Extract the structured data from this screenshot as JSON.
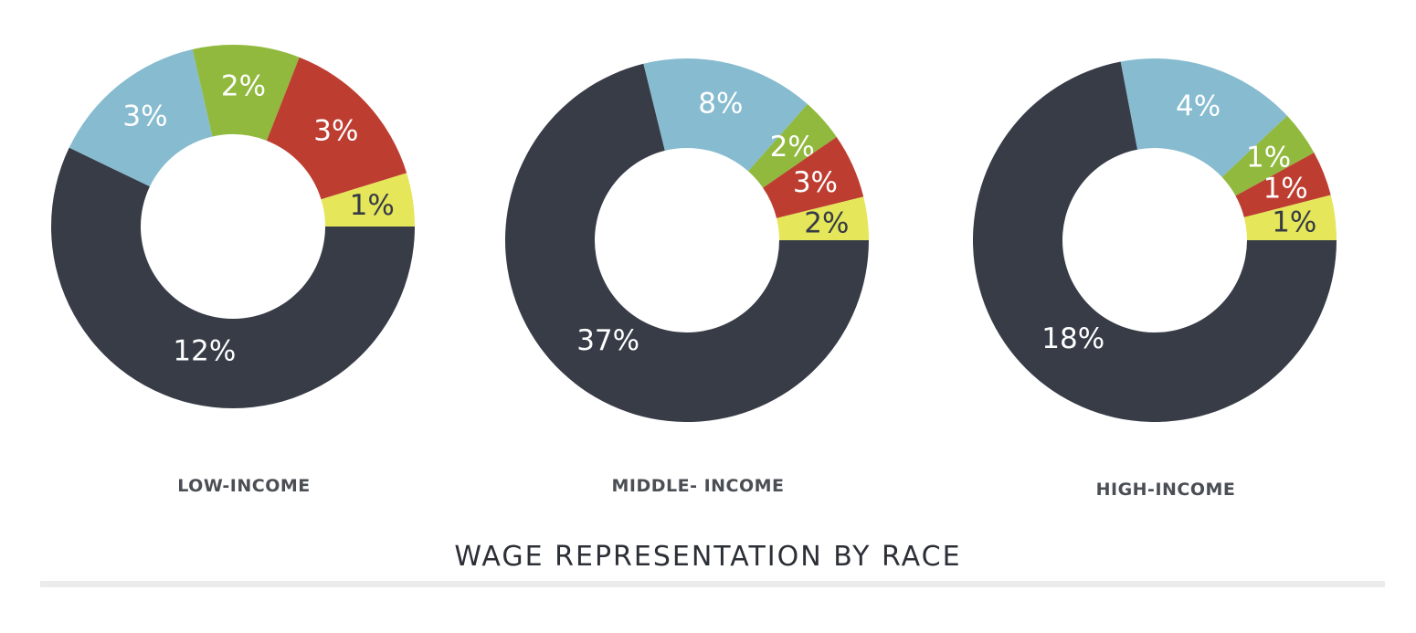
{
  "chart_data": [
    {
      "type": "pie",
      "label": "LOW-INCOME",
      "slices": [
        {
          "value": 12,
          "label": "12%",
          "color": "#373c47"
        },
        {
          "value": 3,
          "label": "3%",
          "color": "#86bbd0"
        },
        {
          "value": 2,
          "label": "2%",
          "color": "#91b93e"
        },
        {
          "value": 3,
          "label": "3%",
          "color": "#bd3e31"
        },
        {
          "value": 1,
          "label": "1%",
          "color": "#e5e65a"
        }
      ]
    },
    {
      "type": "pie",
      "label": "MIDDLE- INCOME",
      "slices": [
        {
          "value": 37,
          "label": "37%",
          "color": "#373c47"
        },
        {
          "value": 8,
          "label": "8%",
          "color": "#86bbd0"
        },
        {
          "value": 2,
          "label": "2%",
          "color": "#91b93e"
        },
        {
          "value": 3,
          "label": "3%",
          "color": "#bd3e31"
        },
        {
          "value": 2,
          "label": "2%",
          "color": "#e5e65a"
        }
      ]
    },
    {
      "type": "pie",
      "label": "HIGH-INCOME",
      "slices": [
        {
          "value": 18,
          "label": "18%",
          "color": "#373c47"
        },
        {
          "value": 4,
          "label": "4%",
          "color": "#86bbd0"
        },
        {
          "value": 1,
          "label": "1%",
          "color": "#91b93e"
        },
        {
          "value": 1,
          "label": "1%",
          "color": "#bd3e31"
        },
        {
          "value": 1,
          "label": "1%",
          "color": "#e5e65a"
        }
      ]
    }
  ],
  "title": "WAGE REPRESENTATION BY RACE"
}
